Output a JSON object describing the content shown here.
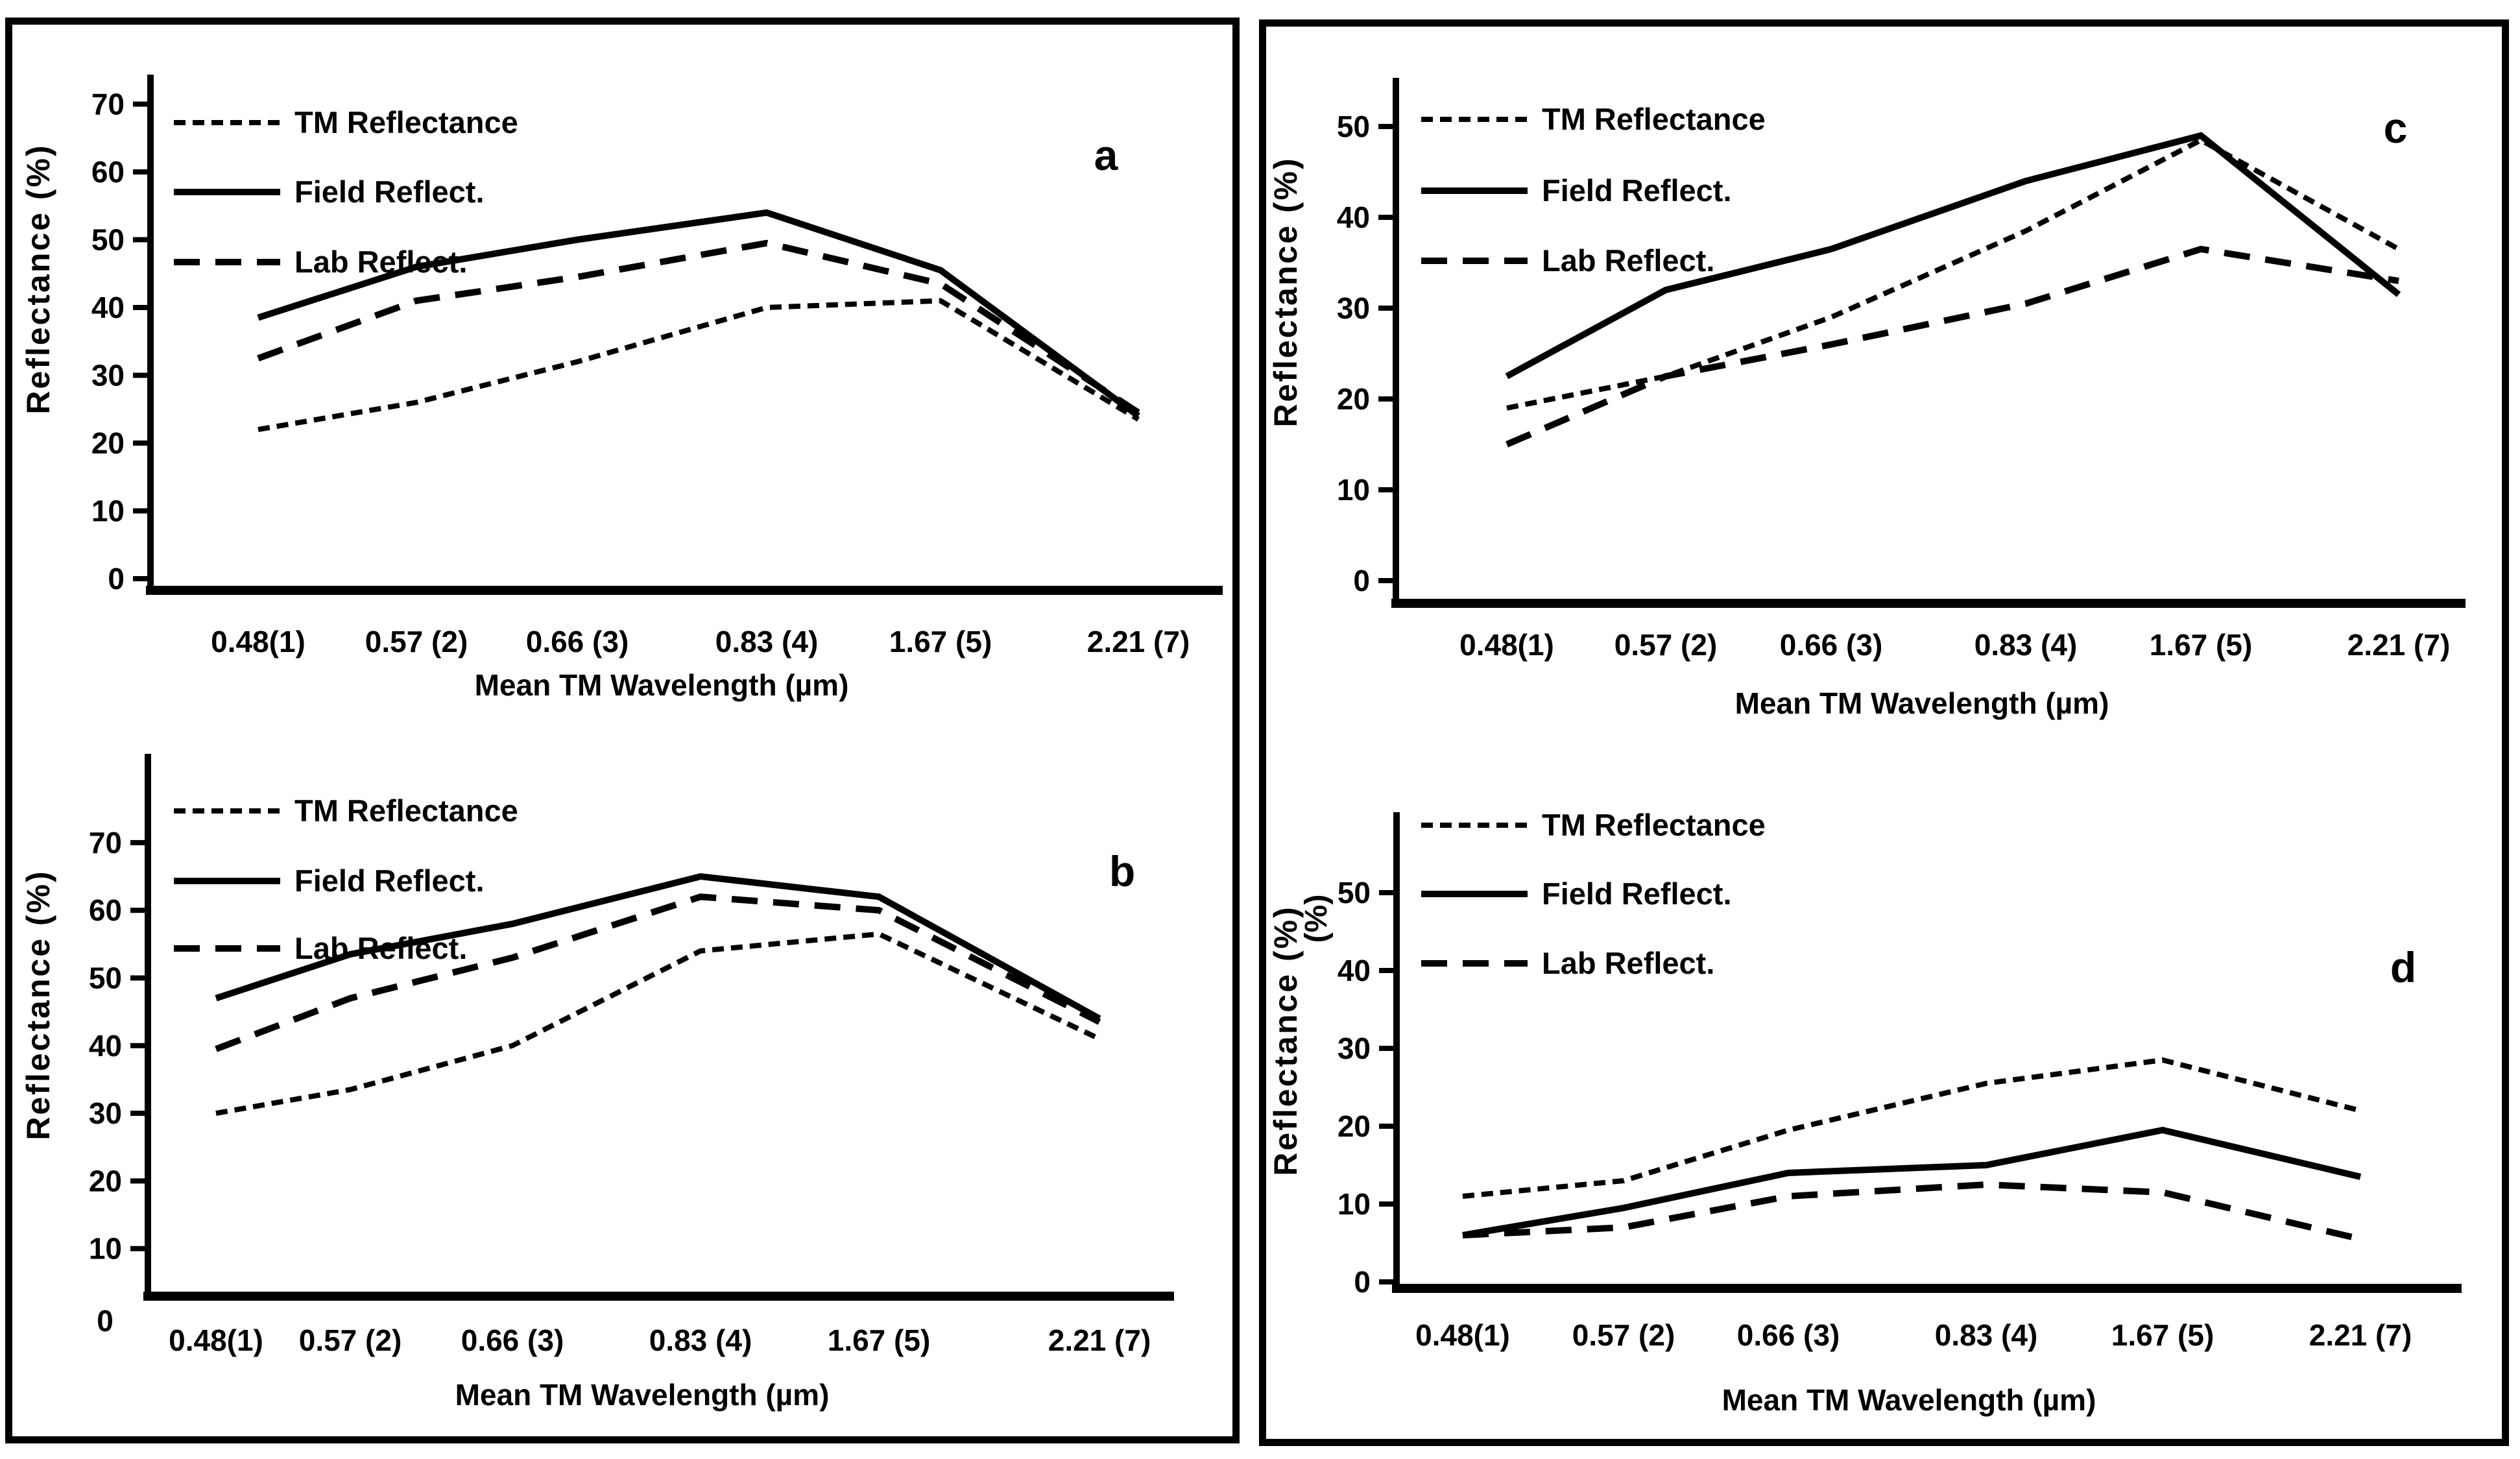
{
  "figure": {
    "background_color": "#ffffff",
    "ink_color": "#000000",
    "panels": [
      {
        "id": "left",
        "contains": [
          "a",
          "b"
        ]
      },
      {
        "id": "right",
        "contains": [
          "c",
          "d"
        ]
      }
    ]
  },
  "chart_data": [
    {
      "id": "a",
      "type": "line",
      "letter": "a",
      "title": "",
      "xlabel": "Mean TM Wavelength (µm)",
      "ylabel": "Reflectance  (%)",
      "ylim": [
        0,
        70
      ],
      "yticks": [
        0,
        10,
        20,
        30,
        40,
        50,
        60,
        70
      ],
      "grid": false,
      "legend_position": "top-left",
      "categories": [
        "0.48(1)",
        "0.57 (2)",
        "0.66 (3)",
        "0.83 (4)",
        "1.67 (5)",
        "2.21 (7)"
      ],
      "series": [
        {
          "name": "TM Reflectance",
          "style": "fine-dashed",
          "values": [
            22,
            26,
            32,
            40,
            41,
            23.5
          ]
        },
        {
          "name": "Field  Reflect.",
          "style": "solid",
          "values": [
            38.5,
            46,
            50,
            54,
            45.5,
            24
          ]
        },
        {
          "name": "Lab Reflect.",
          "style": "dashed",
          "values": [
            32.5,
            41,
            44.5,
            49.5,
            43.5,
            24.5
          ]
        }
      ]
    },
    {
      "id": "b",
      "type": "line",
      "letter": "b",
      "title": "",
      "xlabel": "Mean TM Wavelength (µm)",
      "ylabel": "Reflectance  (%)",
      "ylim": [
        0,
        70
      ],
      "yticks": [
        0,
        10,
        20,
        30,
        40,
        50,
        60,
        70
      ],
      "grid": false,
      "legend_position": "top-left",
      "categories": [
        "0.48(1)",
        "0.57 (2)",
        "0.66 (3)",
        "0.83 (4)",
        "1.67 (5)",
        "2.21 (7)"
      ],
      "series": [
        {
          "name": "TM Reflectance",
          "style": "fine-dashed",
          "values": [
            30,
            33.5,
            40,
            54,
            56.5,
            41
          ]
        },
        {
          "name": "Field  Reflect.",
          "style": "solid",
          "values": [
            47,
            53.5,
            58,
            65,
            62,
            44
          ]
        },
        {
          "name": "Lab Reflect.",
          "style": "dashed",
          "values": [
            39.5,
            47,
            53,
            62,
            60,
            43.5
          ]
        }
      ]
    },
    {
      "id": "c",
      "type": "line",
      "letter": "c",
      "title": "",
      "xlabel": "Mean TM Wavelength (µm)",
      "ylabel": "Reflectance  (%)",
      "ylim": [
        0,
        50
      ],
      "yticks": [
        0,
        10,
        20,
        30,
        40,
        50
      ],
      "grid": false,
      "legend_position": "top-left",
      "categories": [
        "0.48(1)",
        "0.57 (2)",
        "0.66 (3)",
        "0.83 (4)",
        "1.67 (5)",
        "2.21 (7)"
      ],
      "series": [
        {
          "name": "TM Reflectance",
          "style": "fine-dashed",
          "values": [
            19,
            22.5,
            29,
            38.5,
            48.5,
            36.5
          ]
        },
        {
          "name": "Field  Reflect.",
          "style": "solid",
          "values": [
            22.5,
            32,
            36.5,
            44,
            49,
            31.5
          ]
        },
        {
          "name": "Lab Reflect.",
          "style": "dashed",
          "values": [
            15,
            22.5,
            26,
            30.5,
            36.5,
            33
          ]
        }
      ]
    },
    {
      "id": "d",
      "type": "line",
      "letter": "d",
      "title": "",
      "xlabel": "Mean TM Wavelength (µm)",
      "ylabel": "Reflectance  (%)",
      "ylabel_fragment": "(%)",
      "ylim": [
        0,
        50
      ],
      "yticks": [
        0,
        10,
        20,
        30,
        40,
        50
      ],
      "grid": false,
      "legend_position": "top-left",
      "categories": [
        "0.48(1)",
        "0.57 (2)",
        "0.66 (3)",
        "0.83 (4)",
        "1.67 (5)",
        "2.21 (7)"
      ],
      "series": [
        {
          "name": "TM Reflectance",
          "style": "fine-dashed",
          "values": [
            11,
            13,
            19.5,
            25.5,
            28.5,
            22
          ]
        },
        {
          "name": "Field  Reflect.",
          "style": "solid",
          "values": [
            6,
            9.5,
            14,
            15,
            19.5,
            13.5
          ]
        },
        {
          "name": "Lab Reflect.",
          "style": "dashed",
          "values": [
            6,
            7,
            11,
            12.5,
            11.5,
            5.5
          ]
        }
      ]
    }
  ]
}
